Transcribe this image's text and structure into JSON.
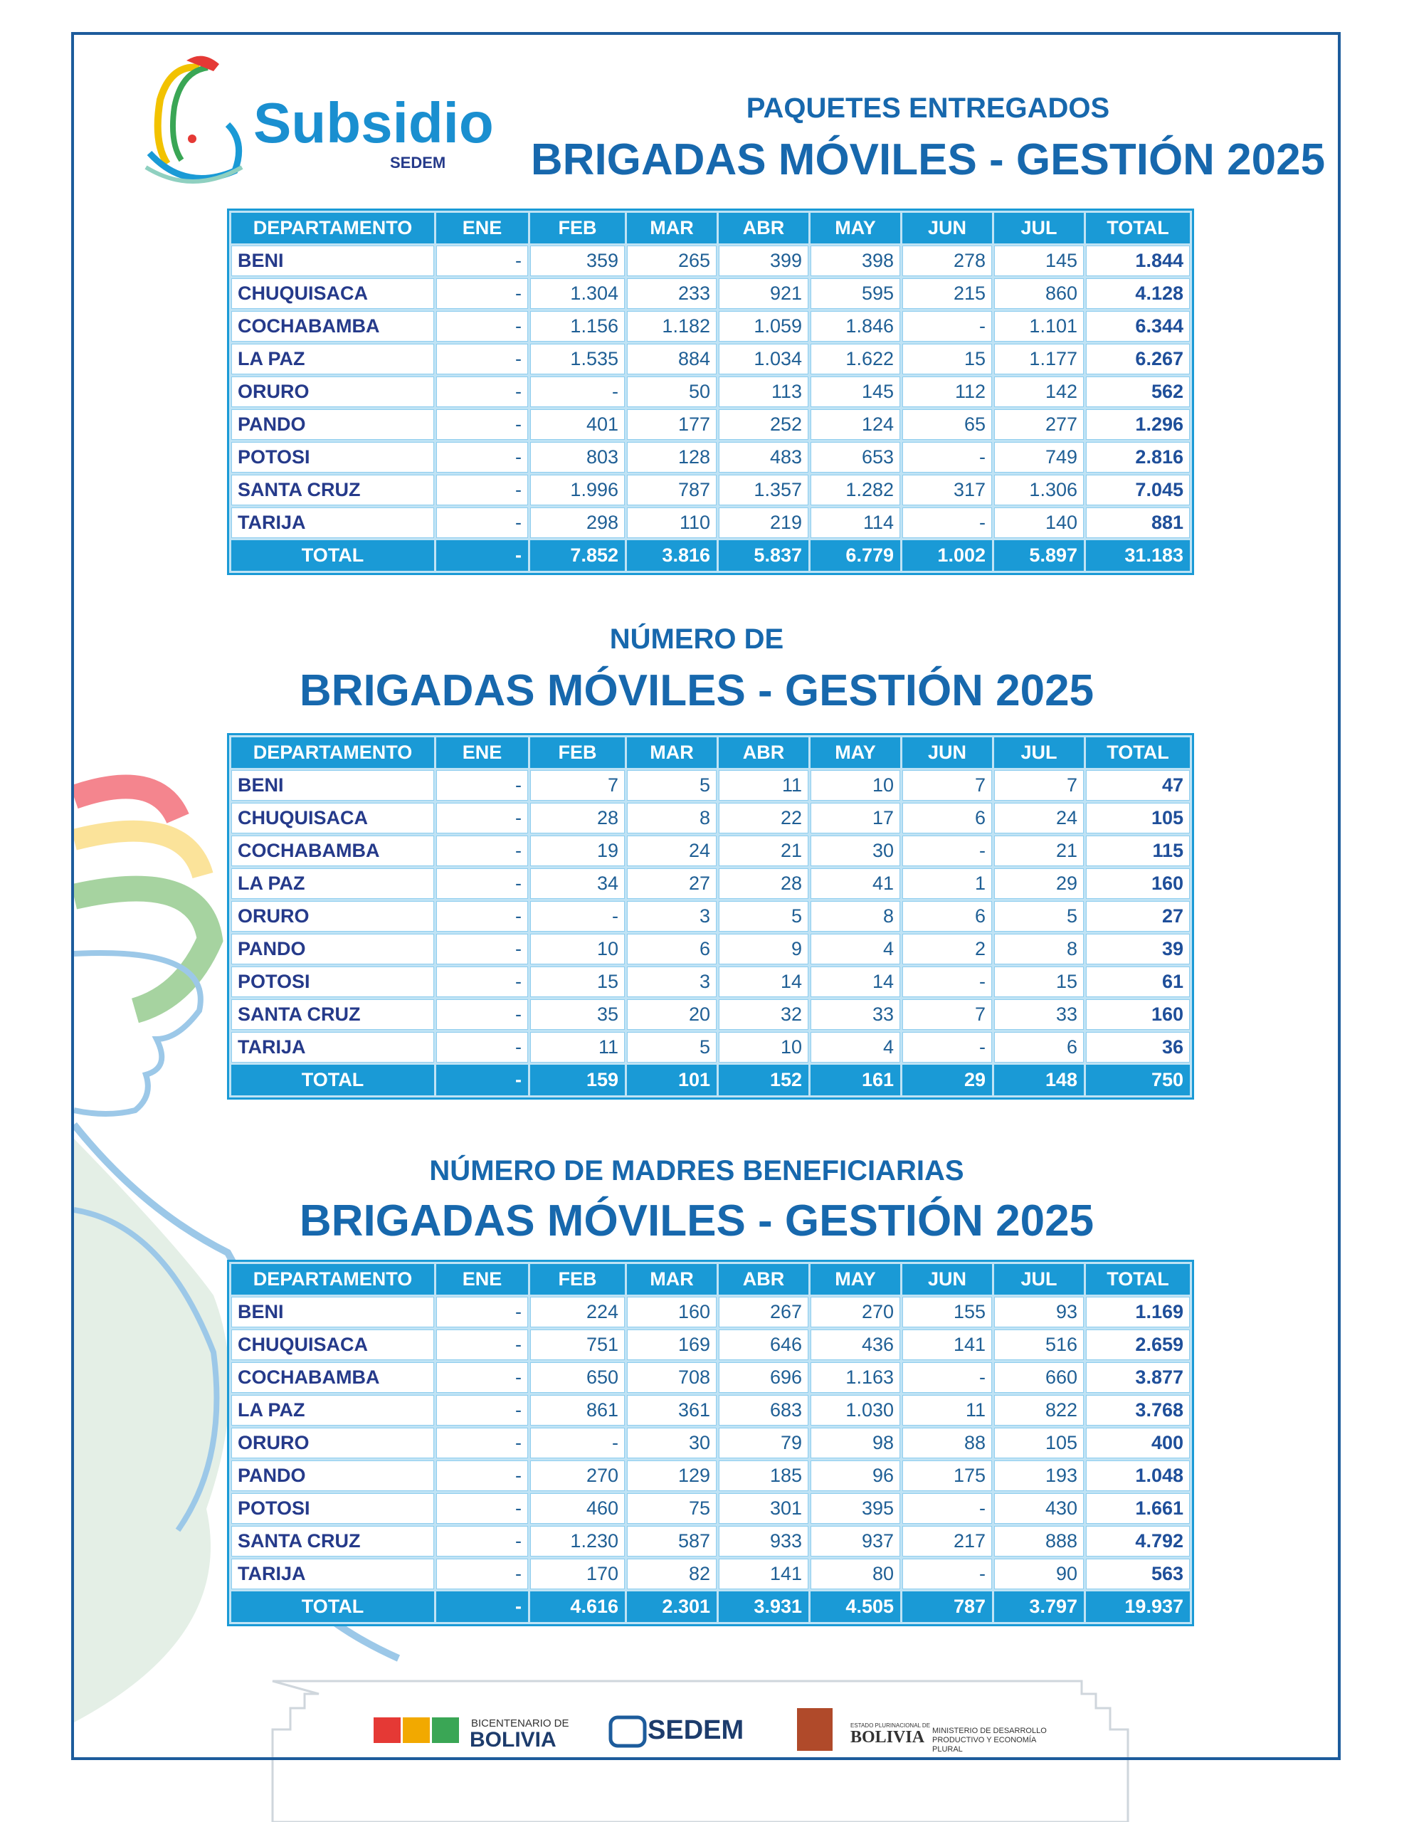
{
  "logo": {
    "name": "Subsidio",
    "org": "SEDEM"
  },
  "tables": [
    {
      "subtitle": "PAQUETES ENTREGADOS",
      "title": "BRIGADAS MÓVILES - GESTIÓN 2025",
      "columns": [
        "DEPARTAMENTO",
        "ENE",
        "FEB",
        "MAR",
        "ABR",
        "MAY",
        "JUN",
        "JUL",
        "TOTAL"
      ],
      "rows": [
        [
          "BENI",
          "-",
          "359",
          "265",
          "399",
          "398",
          "278",
          "145",
          "1.844"
        ],
        [
          "CHUQUISACA",
          "-",
          "1.304",
          "233",
          "921",
          "595",
          "215",
          "860",
          "4.128"
        ],
        [
          "COCHABAMBA",
          "-",
          "1.156",
          "1.182",
          "1.059",
          "1.846",
          "-",
          "1.101",
          "6.344"
        ],
        [
          "LA PAZ",
          "-",
          "1.535",
          "884",
          "1.034",
          "1.622",
          "15",
          "1.177",
          "6.267"
        ],
        [
          "ORURO",
          "-",
          "-",
          "50",
          "113",
          "145",
          "112",
          "142",
          "562"
        ],
        [
          "PANDO",
          "-",
          "401",
          "177",
          "252",
          "124",
          "65",
          "277",
          "1.296"
        ],
        [
          "POTOSI",
          "-",
          "803",
          "128",
          "483",
          "653",
          "-",
          "749",
          "2.816"
        ],
        [
          "SANTA CRUZ",
          "-",
          "1.996",
          "787",
          "1.357",
          "1.282",
          "317",
          "1.306",
          "7.045"
        ],
        [
          "TARIJA",
          "-",
          "298",
          "110",
          "219",
          "114",
          "-",
          "140",
          "881"
        ]
      ],
      "total": [
        "TOTAL",
        "-",
        "7.852",
        "3.816",
        "5.837",
        "6.779",
        "1.002",
        "5.897",
        "31.183"
      ]
    },
    {
      "subtitle": "NÚMERO DE",
      "title": "BRIGADAS MÓVILES - GESTIÓN 2025",
      "columns": [
        "DEPARTAMENTO",
        "ENE",
        "FEB",
        "MAR",
        "ABR",
        "MAY",
        "JUN",
        "JUL",
        "TOTAL"
      ],
      "rows": [
        [
          "BENI",
          "-",
          "7",
          "5",
          "11",
          "10",
          "7",
          "7",
          "47"
        ],
        [
          "CHUQUISACA",
          "-",
          "28",
          "8",
          "22",
          "17",
          "6",
          "24",
          "105"
        ],
        [
          "COCHABAMBA",
          "-",
          "19",
          "24",
          "21",
          "30",
          "-",
          "21",
          "115"
        ],
        [
          "LA PAZ",
          "-",
          "34",
          "27",
          "28",
          "41",
          "1",
          "29",
          "160"
        ],
        [
          "ORURO",
          "-",
          "-",
          "3",
          "5",
          "8",
          "6",
          "5",
          "27"
        ],
        [
          "PANDO",
          "-",
          "10",
          "6",
          "9",
          "4",
          "2",
          "8",
          "39"
        ],
        [
          "POTOSI",
          "-",
          "15",
          "3",
          "14",
          "14",
          "-",
          "15",
          "61"
        ],
        [
          "SANTA CRUZ",
          "-",
          "35",
          "20",
          "32",
          "33",
          "7",
          "33",
          "160"
        ],
        [
          "TARIJA",
          "-",
          "11",
          "5",
          "10",
          "4",
          "-",
          "6",
          "36"
        ]
      ],
      "total": [
        "TOTAL",
        "-",
        "159",
        "101",
        "152",
        "161",
        "29",
        "148",
        "750"
      ]
    },
    {
      "subtitle": "NÚMERO DE MADRES BENEFICIARIAS",
      "title": "BRIGADAS MÓVILES - GESTIÓN 2025",
      "columns": [
        "DEPARTAMENTO",
        "ENE",
        "FEB",
        "MAR",
        "ABR",
        "MAY",
        "JUN",
        "JUL",
        "TOTAL"
      ],
      "rows": [
        [
          "BENI",
          "-",
          "224",
          "160",
          "267",
          "270",
          "155",
          "93",
          "1.169"
        ],
        [
          "CHUQUISACA",
          "-",
          "751",
          "169",
          "646",
          "436",
          "141",
          "516",
          "2.659"
        ],
        [
          "COCHABAMBA",
          "-",
          "650",
          "708",
          "696",
          "1.163",
          "-",
          "660",
          "3.877"
        ],
        [
          "LA PAZ",
          "-",
          "861",
          "361",
          "683",
          "1.030",
          "11",
          "822",
          "3.768"
        ],
        [
          "ORURO",
          "-",
          "-",
          "30",
          "79",
          "98",
          "88",
          "105",
          "400"
        ],
        [
          "PANDO",
          "-",
          "270",
          "129",
          "185",
          "96",
          "175",
          "193",
          "1.048"
        ],
        [
          "POTOSI",
          "-",
          "460",
          "75",
          "301",
          "395",
          "-",
          "430",
          "1.661"
        ],
        [
          "SANTA CRUZ",
          "-",
          "1.230",
          "587",
          "933",
          "937",
          "217",
          "888",
          "4.792"
        ],
        [
          "TARIJA",
          "-",
          "170",
          "82",
          "141",
          "80",
          "-",
          "90",
          "563"
        ]
      ],
      "total": [
        "TOTAL",
        "-",
        "4.616",
        "2.301",
        "3.931",
        "4.505",
        "787",
        "3.797",
        "19.937"
      ]
    }
  ],
  "footer": [
    "BICENTENARIO DE",
    "BOLIVIA",
    "SEDEM",
    "ESTADO PLURINACIONAL DE",
    "BOLIVIA",
    "MINISTERIO DE DESARROLLO PRODUCTIVO Y ECONOMÍA PLURAL"
  ]
}
